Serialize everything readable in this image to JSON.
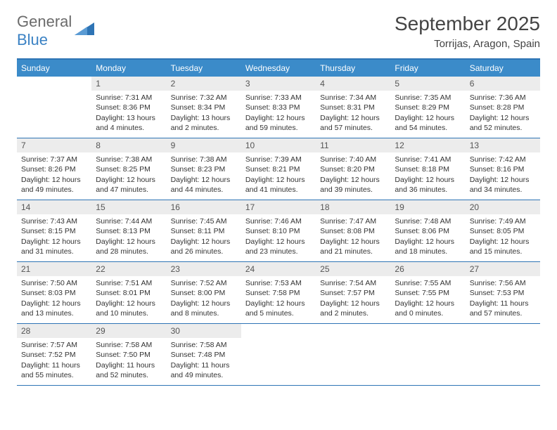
{
  "brand": {
    "general": "General",
    "blue": "Blue"
  },
  "title": "September 2025",
  "location": "Torrijas, Aragon, Spain",
  "colors": {
    "header_bg": "#3b8bc9",
    "border": "#2e74b5",
    "daynum_bg": "#ececec",
    "logo_gray": "#6b6b6b",
    "logo_blue": "#3b82c4"
  },
  "dayNames": [
    "Sunday",
    "Monday",
    "Tuesday",
    "Wednesday",
    "Thursday",
    "Friday",
    "Saturday"
  ],
  "weeks": [
    [
      null,
      {
        "n": "1",
        "sr": "Sunrise: 7:31 AM",
        "ss": "Sunset: 8:36 PM",
        "dl": "Daylight: 13 hours and 4 minutes."
      },
      {
        "n": "2",
        "sr": "Sunrise: 7:32 AM",
        "ss": "Sunset: 8:34 PM",
        "dl": "Daylight: 13 hours and 2 minutes."
      },
      {
        "n": "3",
        "sr": "Sunrise: 7:33 AM",
        "ss": "Sunset: 8:33 PM",
        "dl": "Daylight: 12 hours and 59 minutes."
      },
      {
        "n": "4",
        "sr": "Sunrise: 7:34 AM",
        "ss": "Sunset: 8:31 PM",
        "dl": "Daylight: 12 hours and 57 minutes."
      },
      {
        "n": "5",
        "sr": "Sunrise: 7:35 AM",
        "ss": "Sunset: 8:29 PM",
        "dl": "Daylight: 12 hours and 54 minutes."
      },
      {
        "n": "6",
        "sr": "Sunrise: 7:36 AM",
        "ss": "Sunset: 8:28 PM",
        "dl": "Daylight: 12 hours and 52 minutes."
      }
    ],
    [
      {
        "n": "7",
        "sr": "Sunrise: 7:37 AM",
        "ss": "Sunset: 8:26 PM",
        "dl": "Daylight: 12 hours and 49 minutes."
      },
      {
        "n": "8",
        "sr": "Sunrise: 7:38 AM",
        "ss": "Sunset: 8:25 PM",
        "dl": "Daylight: 12 hours and 47 minutes."
      },
      {
        "n": "9",
        "sr": "Sunrise: 7:38 AM",
        "ss": "Sunset: 8:23 PM",
        "dl": "Daylight: 12 hours and 44 minutes."
      },
      {
        "n": "10",
        "sr": "Sunrise: 7:39 AM",
        "ss": "Sunset: 8:21 PM",
        "dl": "Daylight: 12 hours and 41 minutes."
      },
      {
        "n": "11",
        "sr": "Sunrise: 7:40 AM",
        "ss": "Sunset: 8:20 PM",
        "dl": "Daylight: 12 hours and 39 minutes."
      },
      {
        "n": "12",
        "sr": "Sunrise: 7:41 AM",
        "ss": "Sunset: 8:18 PM",
        "dl": "Daylight: 12 hours and 36 minutes."
      },
      {
        "n": "13",
        "sr": "Sunrise: 7:42 AM",
        "ss": "Sunset: 8:16 PM",
        "dl": "Daylight: 12 hours and 34 minutes."
      }
    ],
    [
      {
        "n": "14",
        "sr": "Sunrise: 7:43 AM",
        "ss": "Sunset: 8:15 PM",
        "dl": "Daylight: 12 hours and 31 minutes."
      },
      {
        "n": "15",
        "sr": "Sunrise: 7:44 AM",
        "ss": "Sunset: 8:13 PM",
        "dl": "Daylight: 12 hours and 28 minutes."
      },
      {
        "n": "16",
        "sr": "Sunrise: 7:45 AM",
        "ss": "Sunset: 8:11 PM",
        "dl": "Daylight: 12 hours and 26 minutes."
      },
      {
        "n": "17",
        "sr": "Sunrise: 7:46 AM",
        "ss": "Sunset: 8:10 PM",
        "dl": "Daylight: 12 hours and 23 minutes."
      },
      {
        "n": "18",
        "sr": "Sunrise: 7:47 AM",
        "ss": "Sunset: 8:08 PM",
        "dl": "Daylight: 12 hours and 21 minutes."
      },
      {
        "n": "19",
        "sr": "Sunrise: 7:48 AM",
        "ss": "Sunset: 8:06 PM",
        "dl": "Daylight: 12 hours and 18 minutes."
      },
      {
        "n": "20",
        "sr": "Sunrise: 7:49 AM",
        "ss": "Sunset: 8:05 PM",
        "dl": "Daylight: 12 hours and 15 minutes."
      }
    ],
    [
      {
        "n": "21",
        "sr": "Sunrise: 7:50 AM",
        "ss": "Sunset: 8:03 PM",
        "dl": "Daylight: 12 hours and 13 minutes."
      },
      {
        "n": "22",
        "sr": "Sunrise: 7:51 AM",
        "ss": "Sunset: 8:01 PM",
        "dl": "Daylight: 12 hours and 10 minutes."
      },
      {
        "n": "23",
        "sr": "Sunrise: 7:52 AM",
        "ss": "Sunset: 8:00 PM",
        "dl": "Daylight: 12 hours and 8 minutes."
      },
      {
        "n": "24",
        "sr": "Sunrise: 7:53 AM",
        "ss": "Sunset: 7:58 PM",
        "dl": "Daylight: 12 hours and 5 minutes."
      },
      {
        "n": "25",
        "sr": "Sunrise: 7:54 AM",
        "ss": "Sunset: 7:57 PM",
        "dl": "Daylight: 12 hours and 2 minutes."
      },
      {
        "n": "26",
        "sr": "Sunrise: 7:55 AM",
        "ss": "Sunset: 7:55 PM",
        "dl": "Daylight: 12 hours and 0 minutes."
      },
      {
        "n": "27",
        "sr": "Sunrise: 7:56 AM",
        "ss": "Sunset: 7:53 PM",
        "dl": "Daylight: 11 hours and 57 minutes."
      }
    ],
    [
      {
        "n": "28",
        "sr": "Sunrise: 7:57 AM",
        "ss": "Sunset: 7:52 PM",
        "dl": "Daylight: 11 hours and 55 minutes."
      },
      {
        "n": "29",
        "sr": "Sunrise: 7:58 AM",
        "ss": "Sunset: 7:50 PM",
        "dl": "Daylight: 11 hours and 52 minutes."
      },
      {
        "n": "30",
        "sr": "Sunrise: 7:58 AM",
        "ss": "Sunset: 7:48 PM",
        "dl": "Daylight: 11 hours and 49 minutes."
      },
      null,
      null,
      null,
      null
    ]
  ]
}
